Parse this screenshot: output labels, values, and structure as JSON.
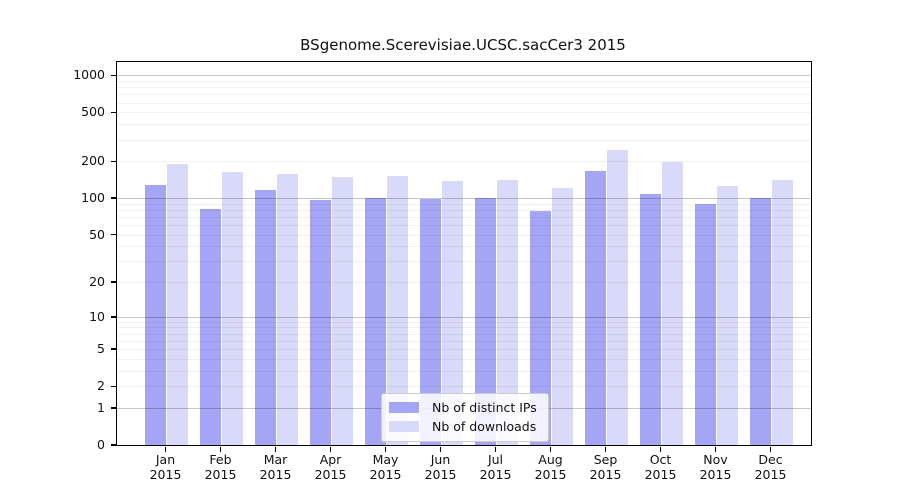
{
  "chart_data": {
    "type": "bar",
    "title": "BSgenome.Scerevisiae.UCSC.sacCer3 2015",
    "categories": [
      "Jan",
      "Feb",
      "Mar",
      "Apr",
      "May",
      "Jun",
      "Jul",
      "Aug",
      "Sep",
      "Oct",
      "Nov",
      "Dec"
    ],
    "category_year": "2015",
    "series": [
      {
        "name": "Nb of distinct IPs",
        "color": "#a5a5f6",
        "values": [
          127,
          81,
          116,
          96,
          100,
          98,
          100,
          78,
          168,
          109,
          90,
          101
        ]
      },
      {
        "name": "Nb of downloads",
        "color": "#d9d9f9",
        "values": [
          190,
          163,
          158,
          148,
          153,
          138,
          141,
          122,
          246,
          198,
          125,
          140
        ]
      }
    ],
    "yscale": "log1p",
    "ylim": [
      0,
      1100
    ],
    "y_tick_values": [
      1000,
      500,
      200,
      100,
      50,
      20,
      10,
      5,
      2,
      1,
      0
    ],
    "y_tick_labels": [
      "1000",
      "500",
      "200",
      "100",
      "50",
      "20",
      "10",
      "5",
      "2",
      "1",
      "0"
    ],
    "grid": "horizontal, minor lines at 1-9 per decade, decade lines emphasized",
    "legend_position": "lower center inside plot",
    "xlabel": "",
    "ylabel": ""
  }
}
